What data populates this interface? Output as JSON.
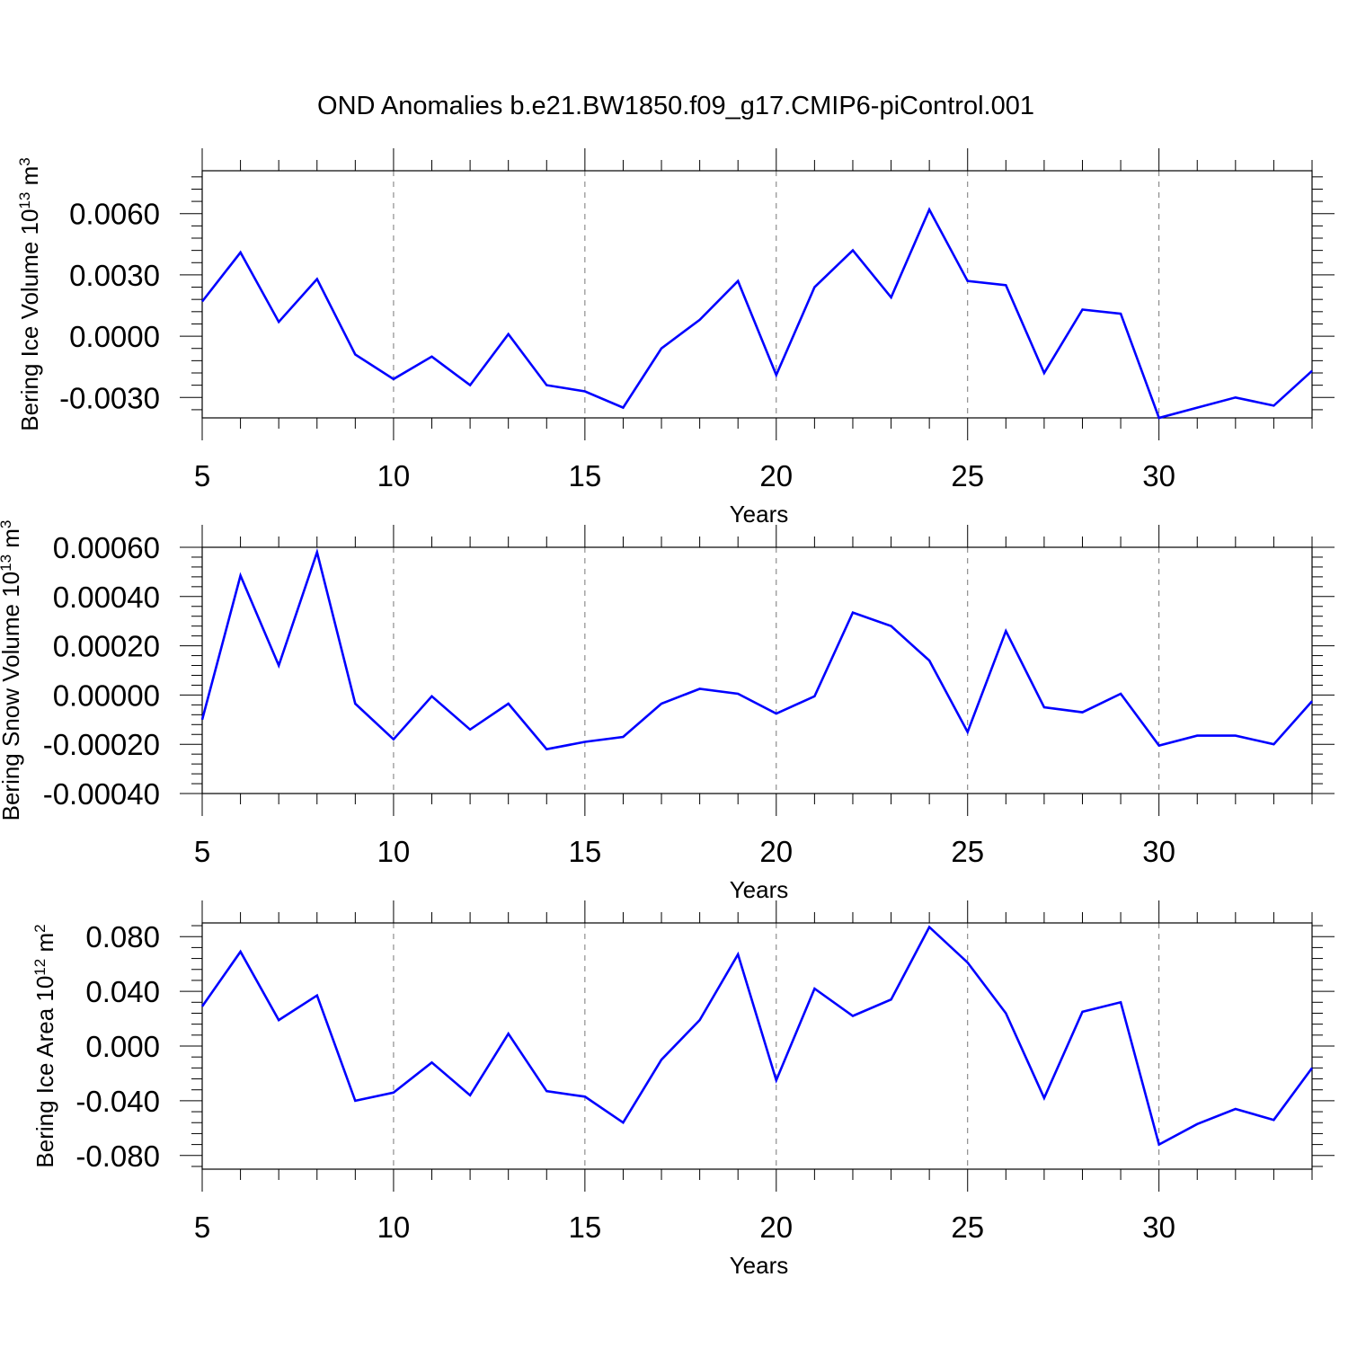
{
  "title": "OND Anomalies b.e21.BW1850.f09_g17.CMIP6-piControl.001",
  "line_color": "#0000ff",
  "chart_data": [
    {
      "type": "line",
      "ylabel_text": "Bering Ice Volume 10",
      "ylabel_exp": "13",
      "ylabel_unit": " m",
      "ylabel_unit_exp": "3",
      "xlabel": "Years",
      "xlim": [
        5,
        34
      ],
      "ylim": [
        -0.004,
        0.0081
      ],
      "xticks": [
        5,
        10,
        15,
        20,
        25,
        30
      ],
      "xtick_labels": [
        "5",
        "10",
        "15",
        "20",
        "25",
        "30"
      ],
      "yticks": [
        -0.003,
        0.0,
        0.003,
        0.006
      ],
      "ytick_labels": [
        "-0.0030",
        "0.0000",
        "0.0030",
        "0.0060"
      ],
      "x": [
        5,
        6,
        7,
        8,
        9,
        10,
        11,
        12,
        13,
        14,
        15,
        16,
        17,
        18,
        19,
        20,
        21,
        22,
        23,
        24,
        25,
        26,
        27,
        28,
        29,
        30,
        31,
        32,
        33,
        34
      ],
      "values": [
        0.0017,
        0.0041,
        0.0007,
        0.0028,
        -0.0009,
        -0.0021,
        -0.001,
        -0.0024,
        0.0001,
        -0.0024,
        -0.0027,
        -0.0035,
        -0.0006,
        0.0008,
        0.0027,
        -0.0019,
        0.0024,
        0.0042,
        0.0019,
        0.0062,
        0.0027,
        0.0025,
        -0.0018,
        0.0013,
        0.0011,
        -0.004,
        -0.0035,
        -0.003,
        -0.0034,
        -0.0017
      ]
    },
    {
      "type": "line",
      "ylabel_text": "Bering Snow Volume 10",
      "ylabel_exp": "13",
      "ylabel_unit": " m",
      "ylabel_unit_exp": "3",
      "xlabel": "Years",
      "xlim": [
        5,
        34
      ],
      "ylim": [
        -0.0004,
        0.0006
      ],
      "xticks": [
        5,
        10,
        15,
        20,
        25,
        30
      ],
      "xtick_labels": [
        "5",
        "10",
        "15",
        "20",
        "25",
        "30"
      ],
      "yticks": [
        -0.0004,
        -0.0002,
        0.0,
        0.0002,
        0.0004,
        0.0006
      ],
      "ytick_labels": [
        "-0.00040",
        "-0.00020",
        "0.00000",
        "0.00020",
        "0.00040",
        "0.00060"
      ],
      "x": [
        5,
        6,
        7,
        8,
        9,
        10,
        11,
        12,
        13,
        14,
        15,
        16,
        17,
        18,
        19,
        20,
        21,
        22,
        23,
        24,
        25,
        26,
        27,
        28,
        29,
        30,
        31,
        32,
        33,
        34
      ],
      "values": [
        -0.0001,
        0.000485,
        0.00012,
        0.00058,
        -3.5e-05,
        -0.00018,
        -5e-06,
        -0.00014,
        -3.5e-05,
        -0.00022,
        -0.00019,
        -0.00017,
        -3.5e-05,
        2.5e-05,
        5e-06,
        -7.5e-05,
        -5e-06,
        0.000335,
        0.00028,
        0.00014,
        -0.00015,
        0.00026,
        -5e-05,
        -7e-05,
        5e-06,
        -0.000205,
        -0.000165,
        -0.000165,
        -0.0002,
        -2.5e-05
      ]
    },
    {
      "type": "line",
      "ylabel_text": "Bering Ice Area 10",
      "ylabel_exp": "12",
      "ylabel_unit": " m",
      "ylabel_unit_exp": "2",
      "xlabel": "Years",
      "xlim": [
        5,
        34
      ],
      "ylim": [
        -0.09,
        0.09
      ],
      "xticks": [
        5,
        10,
        15,
        20,
        25,
        30
      ],
      "xtick_labels": [
        "5",
        "10",
        "15",
        "20",
        "25",
        "30"
      ],
      "yticks": [
        -0.08,
        -0.04,
        0.0,
        0.04,
        0.08
      ],
      "ytick_labels": [
        "-0.080",
        "-0.040",
        "0.000",
        "0.040",
        "0.080"
      ],
      "x": [
        5,
        6,
        7,
        8,
        9,
        10,
        11,
        12,
        13,
        14,
        15,
        16,
        17,
        18,
        19,
        20,
        21,
        22,
        23,
        24,
        25,
        26,
        27,
        28,
        29,
        30,
        31,
        32,
        33,
        34
      ],
      "values": [
        0.029,
        0.069,
        0.019,
        0.037,
        -0.04,
        -0.034,
        -0.012,
        -0.036,
        0.009,
        -0.033,
        -0.037,
        -0.056,
        -0.01,
        0.019,
        0.067,
        -0.025,
        0.042,
        0.022,
        0.034,
        0.087,
        0.061,
        0.024,
        -0.038,
        0.025,
        0.032,
        -0.072,
        -0.057,
        -0.046,
        -0.054,
        -0.016
      ]
    }
  ]
}
